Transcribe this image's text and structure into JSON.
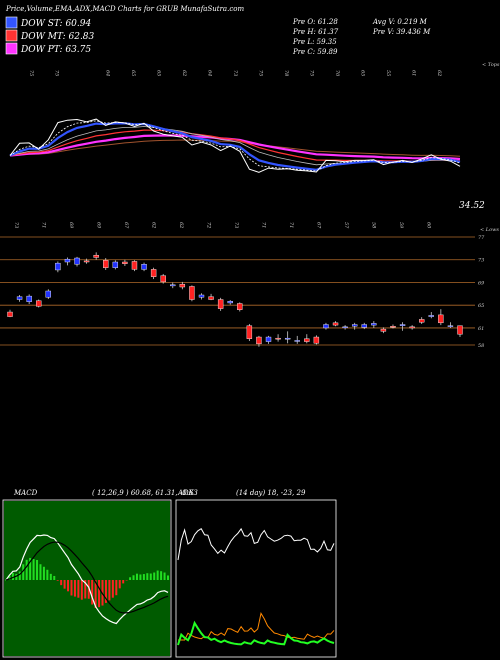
{
  "header": {
    "title": "Price,Volume,EMA,ADX,MACD Charts for GRUB MunafaSutra.com",
    "dow_st": "DOW ST: 60.94",
    "dow_mt": "DOW MT: 62.83",
    "dow_pt": "DOW PT: 63.75",
    "pre_o": "Pre   O: 61.28",
    "pre_h": "Pre   H: 61.37",
    "pre_l": "Pre   L: 59.35",
    "pre_c": "Pre   C: 59.89",
    "avg_v": "Avg V: 0.219  M",
    "pre_v": "Pre   V: 39.436   M",
    "colors": {
      "st": "#3355ff",
      "mt": "#ff3333",
      "pt": "#ff33ff"
    }
  },
  "top_panel": {
    "corner_label": "< Tops",
    "last_value_label": "34.52",
    "top_numbers": [
      "75",
      "75",
      "",
      "64",
      "65",
      "65",
      "62",
      "64",
      "73",
      "75",
      "78",
      "75",
      "70",
      "65",
      "55",
      "61",
      "62"
    ],
    "bottom_numbers": [
      "73",
      "71",
      "69",
      "69",
      "67",
      "62",
      "62",
      "72",
      "73",
      "71",
      "71",
      "67",
      "57",
      "58",
      "59",
      "60"
    ]
  },
  "chart_data": {
    "type": "candlestick",
    "title": "",
    "price_panel": {
      "corner_label": "< Lows",
      "levels": [
        {
          "label": "77",
          "value": 77
        },
        {
          "label": "73",
          "value": 73
        },
        {
          "label": "69",
          "value": 69
        },
        {
          "label": "65",
          "value": 65
        },
        {
          "label": "61",
          "value": 61
        },
        {
          "label": "58",
          "value": 58
        }
      ],
      "candles": [
        {
          "o": 63.8,
          "c": 63.0,
          "h": 64.2,
          "l": 62.9
        },
        {
          "o": 66.0,
          "c": 66.5,
          "h": 66.8,
          "l": 65.6
        },
        {
          "o": 65.6,
          "c": 66.6,
          "h": 66.9,
          "l": 65.2
        },
        {
          "o": 65.8,
          "c": 64.8,
          "h": 66.0,
          "l": 64.6
        },
        {
          "o": 66.4,
          "c": 67.5,
          "h": 67.8,
          "l": 66.1
        },
        {
          "o": 71.2,
          "c": 72.4,
          "h": 72.7,
          "l": 70.8
        },
        {
          "o": 72.6,
          "c": 73.1,
          "h": 73.4,
          "l": 72.0
        },
        {
          "o": 72.2,
          "c": 73.3,
          "h": 73.5,
          "l": 71.8
        },
        {
          "o": 72.8,
          "c": 72.6,
          "h": 73.2,
          "l": 72.3
        },
        {
          "o": 73.8,
          "c": 73.4,
          "h": 74.3,
          "l": 73.0
        },
        {
          "o": 72.9,
          "c": 71.6,
          "h": 73.3,
          "l": 71.2
        },
        {
          "o": 71.6,
          "c": 72.6,
          "h": 72.9,
          "l": 71.3
        },
        {
          "o": 72.6,
          "c": 72.3,
          "h": 73.0,
          "l": 71.9
        },
        {
          "o": 72.7,
          "c": 71.3,
          "h": 72.9,
          "l": 71.0
        },
        {
          "o": 71.3,
          "c": 72.2,
          "h": 72.5,
          "l": 71.0
        },
        {
          "o": 71.3,
          "c": 70.0,
          "h": 71.6,
          "l": 69.6
        },
        {
          "o": 70.2,
          "c": 69.1,
          "h": 70.5,
          "l": 68.8
        },
        {
          "o": 68.4,
          "c": 68.6,
          "h": 69.0,
          "l": 68.0
        },
        {
          "o": 68.7,
          "c": 68.2,
          "h": 69.1,
          "l": 67.8
        },
        {
          "o": 68.3,
          "c": 66.0,
          "h": 68.5,
          "l": 65.7
        },
        {
          "o": 66.4,
          "c": 66.8,
          "h": 67.1,
          "l": 66.0
        },
        {
          "o": 66.5,
          "c": 66.0,
          "h": 67.0,
          "l": 65.9
        },
        {
          "o": 66.0,
          "c": 64.4,
          "h": 66.3,
          "l": 64.0
        },
        {
          "o": 65.4,
          "c": 65.7,
          "h": 65.9,
          "l": 65.1
        },
        {
          "o": 65.3,
          "c": 64.2,
          "h": 65.5,
          "l": 63.9
        },
        {
          "o": 61.4,
          "c": 59.1,
          "h": 61.7,
          "l": 58.7
        },
        {
          "o": 59.4,
          "c": 58.2,
          "h": 59.6,
          "l": 57.7
        },
        {
          "o": 58.6,
          "c": 59.4,
          "h": 59.6,
          "l": 58.2
        },
        {
          "o": 59.2,
          "c": 59.1,
          "h": 59.9,
          "l": 58.6
        },
        {
          "o": 59.2,
          "c": 59.2,
          "h": 60.4,
          "l": 58.3
        },
        {
          "o": 58.7,
          "c": 58.8,
          "h": 59.6,
          "l": 58.2
        },
        {
          "o": 59.1,
          "c": 58.6,
          "h": 59.9,
          "l": 58.3
        },
        {
          "o": 59.4,
          "c": 58.3,
          "h": 59.7,
          "l": 58.1
        },
        {
          "o": 61.0,
          "c": 61.6,
          "h": 61.9,
          "l": 60.7
        },
        {
          "o": 61.9,
          "c": 61.5,
          "h": 62.2,
          "l": 61.3
        },
        {
          "o": 61.2,
          "c": 61.2,
          "h": 61.5,
          "l": 60.7
        },
        {
          "o": 61.3,
          "c": 61.6,
          "h": 61.9,
          "l": 60.7
        },
        {
          "o": 61.1,
          "c": 61.6,
          "h": 61.9,
          "l": 60.8
        },
        {
          "o": 61.5,
          "c": 61.8,
          "h": 62.2,
          "l": 61.0
        },
        {
          "o": 60.8,
          "c": 60.4,
          "h": 61.1,
          "l": 60.1
        },
        {
          "o": 61.3,
          "c": 61.1,
          "h": 61.6,
          "l": 60.9
        },
        {
          "o": 61.4,
          "c": 61.6,
          "h": 62.0,
          "l": 60.5
        },
        {
          "o": 61.2,
          "c": 61.0,
          "h": 61.5,
          "l": 60.7
        },
        {
          "o": 62.5,
          "c": 62.0,
          "h": 62.9,
          "l": 61.7
        },
        {
          "o": 63.0,
          "c": 63.2,
          "h": 63.8,
          "l": 62.7
        },
        {
          "o": 63.3,
          "c": 61.9,
          "h": 64.3,
          "l": 61.5
        },
        {
          "o": 61.4,
          "c": 61.4,
          "h": 62.0,
          "l": 61.0
        },
        {
          "o": 61.4,
          "c": 59.9,
          "h": 61.4,
          "l": 59.4
        }
      ]
    },
    "macd_panel": {
      "label": "MACD",
      "params": "( 12,26,9 ) 60.68,  61.31,  -0.63"
    },
    "adx_panel": {
      "label": "ADX",
      "params": "(14 day) 18,  -23,  29"
    }
  }
}
